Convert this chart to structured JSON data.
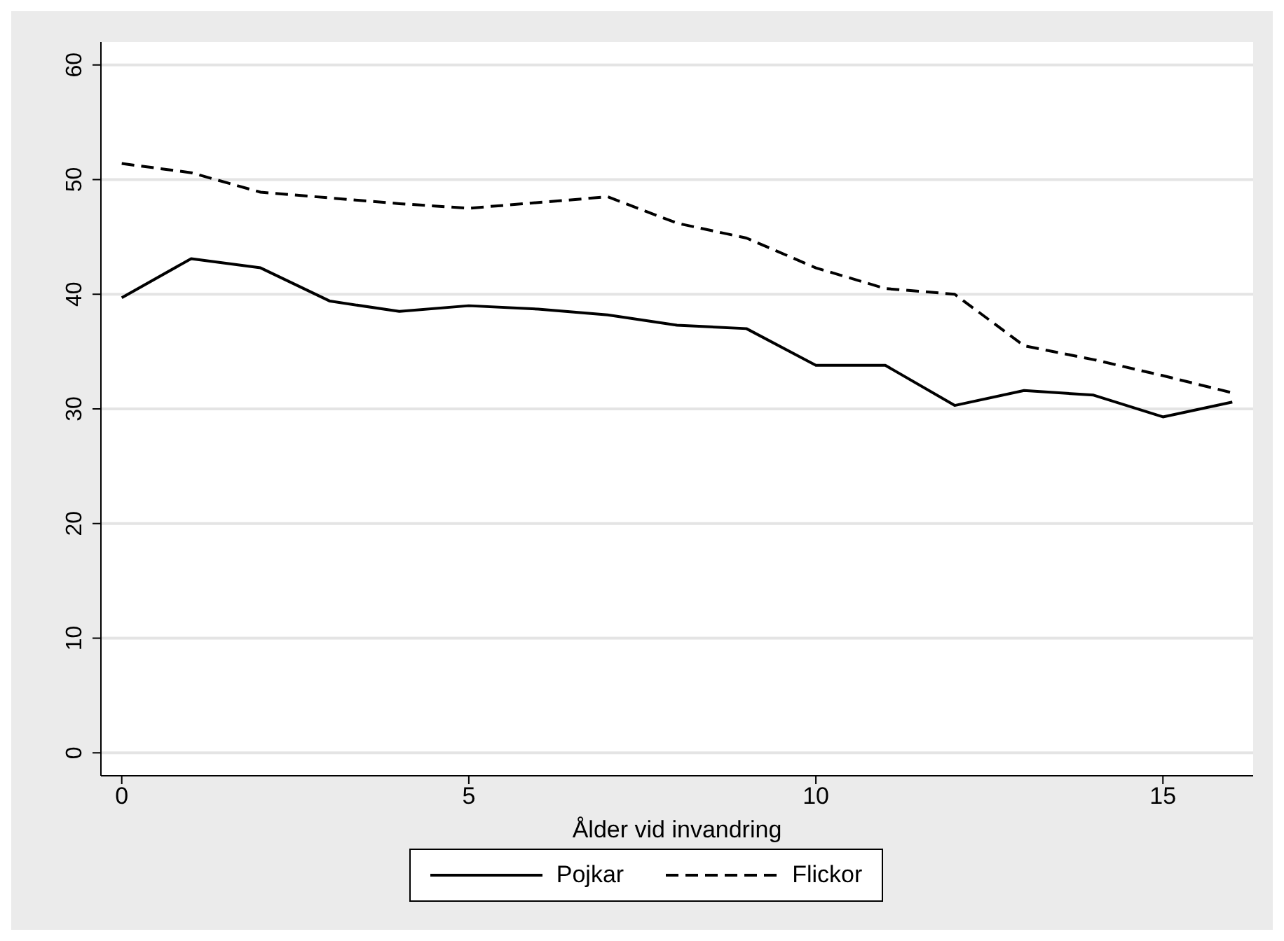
{
  "chart_data": {
    "type": "line",
    "xlabel": "Ålder vid invandring",
    "x": [
      0,
      1,
      2,
      3,
      4,
      5,
      6,
      7,
      8,
      9,
      10,
      11,
      12,
      13,
      14,
      15,
      16
    ],
    "xlim": [
      -0.3,
      16.3
    ],
    "xticks": [
      0,
      5,
      10,
      15
    ],
    "ylim": [
      -2,
      62
    ],
    "yticks": [
      0,
      10,
      20,
      30,
      40,
      50,
      60
    ],
    "grid": "y",
    "legend": "bottom",
    "marker": "none",
    "series": [
      {
        "name": "Pojkar",
        "color": "#000000",
        "line_style": "solid",
        "values": [
          39.7,
          43.1,
          42.3,
          39.4,
          38.5,
          39.0,
          38.7,
          38.2,
          37.3,
          37.0,
          33.8,
          33.8,
          30.3,
          31.6,
          31.2,
          29.3,
          30.6
        ]
      },
      {
        "name": "Flickor",
        "color": "#000000",
        "line_style": "dashed",
        "values": [
          51.4,
          50.6,
          48.9,
          48.4,
          47.9,
          47.5,
          48.0,
          48.5,
          46.2,
          44.9,
          42.3,
          40.5,
          40.0,
          35.5,
          34.3,
          32.9,
          31.4
        ]
      }
    ]
  }
}
